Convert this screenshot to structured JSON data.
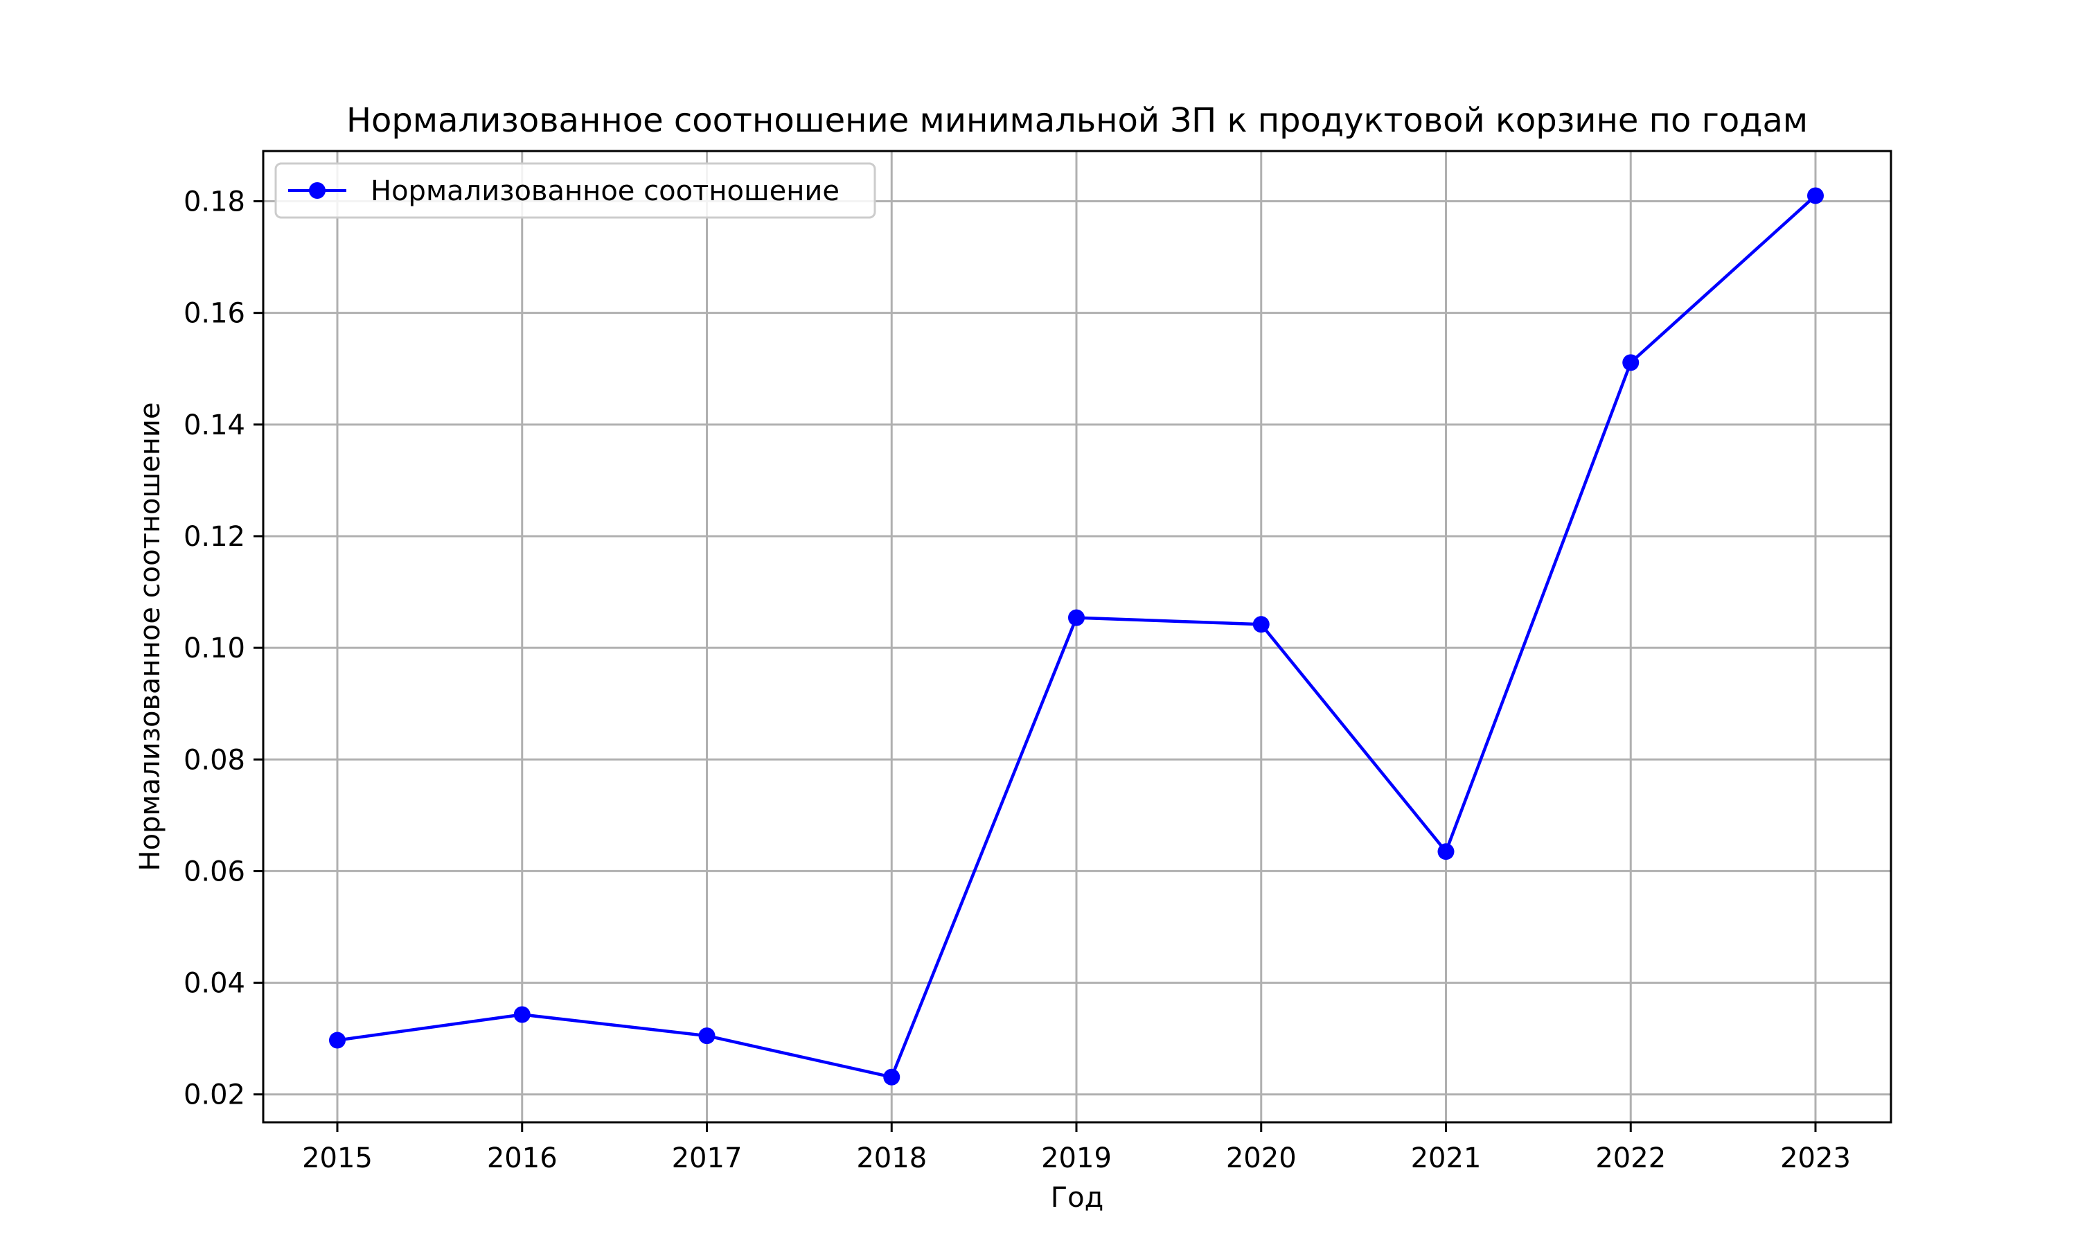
{
  "chart_data": {
    "type": "line",
    "title": "Нормализованное соотношение минимальной ЗП к продуктовой корзине по годам",
    "xlabel": "Год",
    "ylabel": "Нормализованное соотношение",
    "x": [
      "2015",
      "2016",
      "2017",
      "2018",
      "2019",
      "2020",
      "2021",
      "2022",
      "2023"
    ],
    "yticks": [
      "0.02",
      "0.04",
      "0.06",
      "0.08",
      "0.10",
      "0.12",
      "0.14",
      "0.16",
      "0.18"
    ],
    "ylim": [
      0.015,
      0.189
    ],
    "grid": true,
    "legend_position": "top-left",
    "series": [
      {
        "name": "Нормализованное соотношение",
        "color": "#0000ff",
        "marker": "circle",
        "values": [
          0.0297,
          0.0343,
          0.0305,
          0.0231,
          0.1054,
          0.1042,
          0.0635,
          0.1511,
          0.181
        ]
      }
    ]
  }
}
